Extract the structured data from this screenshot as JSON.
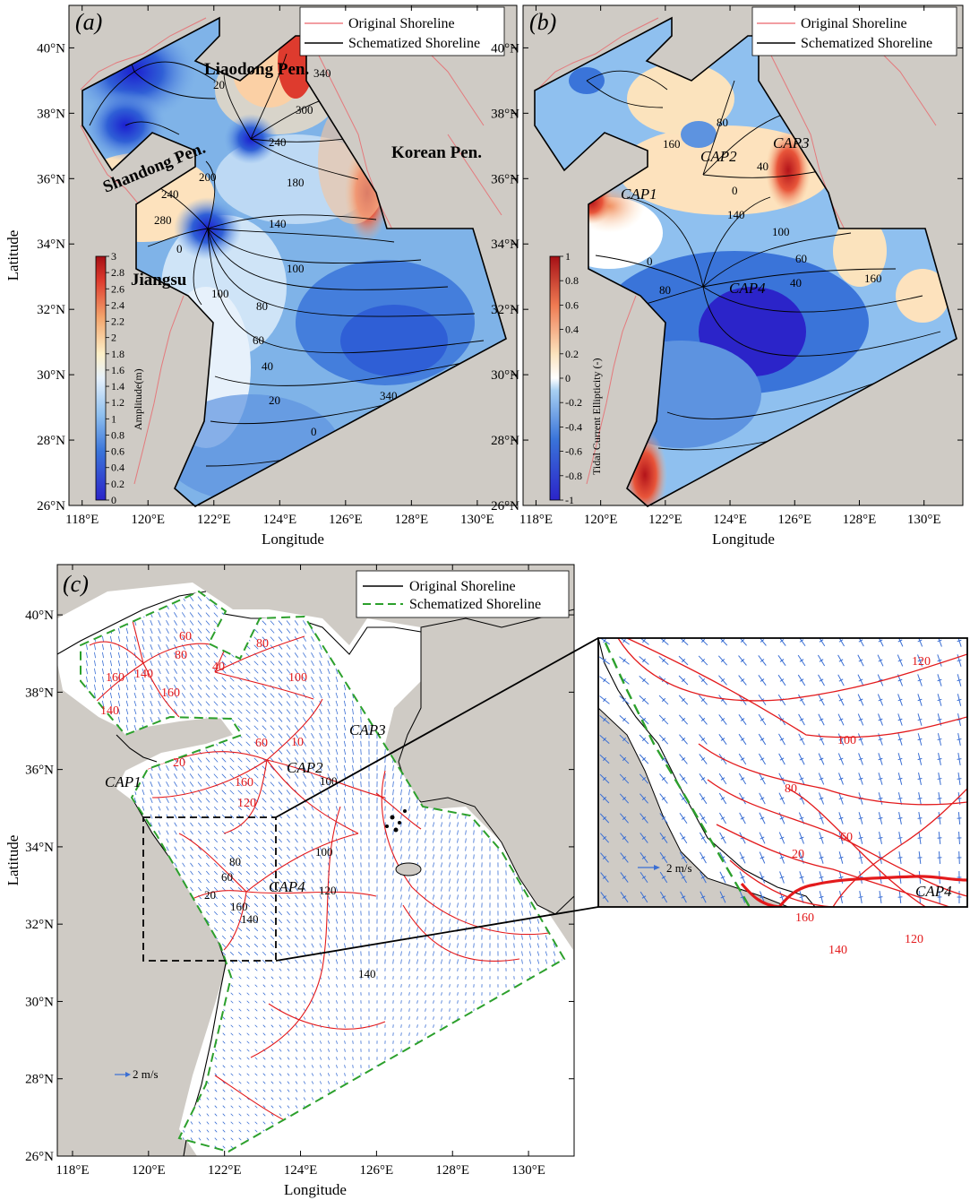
{
  "panel_a": {
    "letter": "(a)",
    "legend": [
      "Original Shoreline",
      "Schematized Shoreline"
    ],
    "colorbar_title": "Amplitude(m)",
    "colorbar_ticks": [
      "0",
      "0.2",
      "0.4",
      "0.6",
      "0.8",
      "1",
      "1.2",
      "1.4",
      "1.6",
      "1.8",
      "2",
      "2.2",
      "2.4",
      "2.6",
      "2.8",
      "3"
    ],
    "labels": [
      "Liaodong Pen.",
      "Shandong Pen.",
      "Korean Pen.",
      "Jiangsu"
    ],
    "contour_labels": [
      "20",
      "340",
      "300",
      "240",
      "200",
      "180",
      "240",
      "280",
      "140",
      "0",
      "100",
      "100",
      "80",
      "60",
      "40",
      "20",
      "0",
      "340"
    ]
  },
  "panel_b": {
    "letter": "(b)",
    "legend": [
      "Original Shoreline",
      "Schematized Shoreline"
    ],
    "colorbar_title": "Tidal Current Ellipticity (-)",
    "colorbar_ticks": [
      "-1",
      "-0.8",
      "-0.6",
      "-0.4",
      "-0.2",
      "0",
      "0.2",
      "0.4",
      "0.6",
      "0.8",
      "1"
    ],
    "labels": [
      "CAP1",
      "CAP2",
      "CAP3",
      "CAP4"
    ],
    "contour_labels": [
      "80",
      "40",
      "160",
      "0",
      "140",
      "100",
      "60",
      "40",
      "160",
      "80",
      "0"
    ]
  },
  "panel_c": {
    "letter": "(c)",
    "legend": [
      "Original Shoreline",
      "Schematized Shoreline"
    ],
    "labels": [
      "CAP1",
      "CAP2",
      "CAP3",
      "CAP4"
    ],
    "scale_label": "2 m/s",
    "contour_labels": [
      "60",
      "80",
      "140",
      "160",
      "160",
      "140",
      "40",
      "80",
      "100",
      "60",
      "10",
      "20",
      "160",
      "120",
      "100",
      "100",
      "120",
      "80",
      "60",
      "20",
      "160",
      "140",
      "140"
    ]
  },
  "inset": {
    "label": "CAP4",
    "scale_label": "2 m/s",
    "contour_labels": [
      "120",
      "100",
      "80",
      "60",
      "20",
      "160",
      "140",
      "120"
    ]
  },
  "axes": {
    "lon_ticks": [
      "118°E",
      "120°E",
      "122°E",
      "124°E",
      "126°E",
      "128°E",
      "130°E"
    ],
    "lat_ticks": [
      "26°N",
      "28°N",
      "30°N",
      "32°N",
      "34°N",
      "36°N",
      "38°N",
      "40°N"
    ],
    "xlabel": "Longitude",
    "ylabel": "Latitude"
  },
  "colors": {
    "land": "#cfcbc5",
    "sea_white": "#ffffff",
    "original_shoreline_ab": "#e9656a",
    "schematized_shoreline_ab": "#000000",
    "original_shoreline_c": "#000000",
    "schematized_shoreline_c": "#2ca02c",
    "cotidal_c": "#e31a1c",
    "current_cross": "#3b6fd4"
  }
}
